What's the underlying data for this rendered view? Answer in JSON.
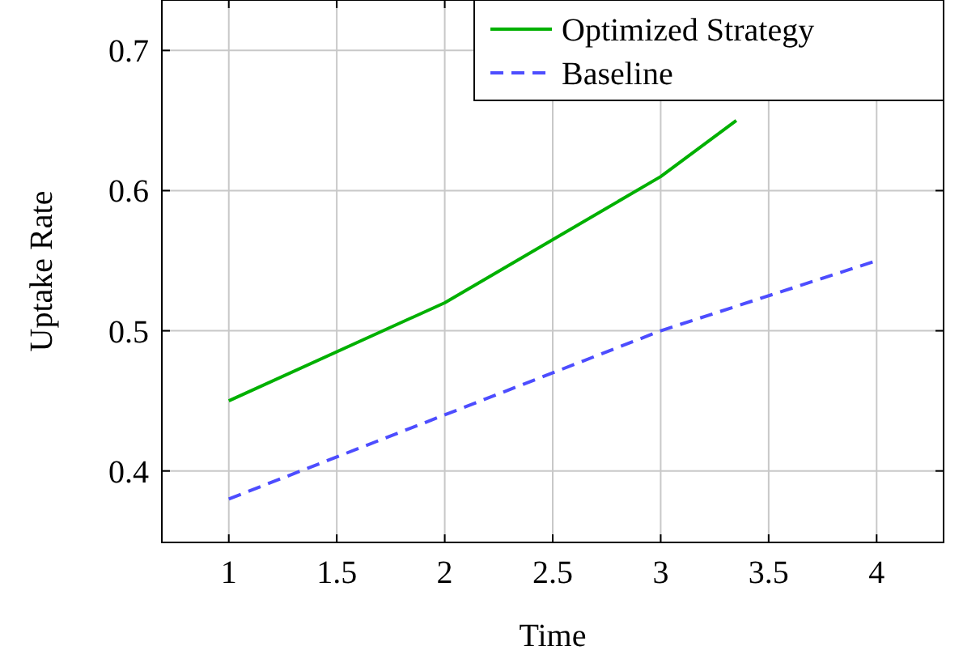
{
  "chart_data": {
    "type": "line",
    "xlabel": "Time",
    "ylabel": "Uptake Rate",
    "xlim": [
      0.69,
      4.31
    ],
    "ylim": [
      0.349,
      0.736
    ],
    "xticks": [
      1,
      1.5,
      2,
      2.5,
      3,
      3.5,
      4
    ],
    "yticks": [
      0.4,
      0.5,
      0.6,
      0.7
    ],
    "grid": true,
    "legend": "top right",
    "marker": "none",
    "series": [
      {
        "name": "Optimized Strategy",
        "color": "#00b000",
        "x": [
          1,
          2,
          3,
          3.35
        ],
        "values": [
          0.45,
          0.52,
          0.61,
          0.65
        ],
        "line_style": "solid"
      },
      {
        "name": "Baseline",
        "color": "#4d4dff",
        "x": [
          1,
          2,
          3,
          4
        ],
        "values": [
          0.38,
          0.44,
          0.5,
          0.55
        ],
        "line_style": "dashed"
      }
    ]
  }
}
